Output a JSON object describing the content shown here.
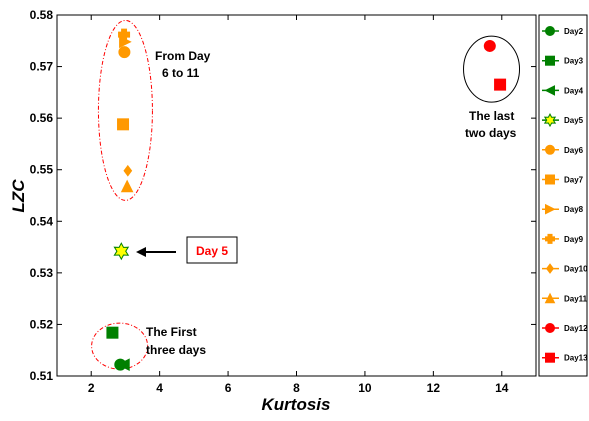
{
  "chart_data": {
    "type": "scatter",
    "title": "",
    "xlabel": "Kurtosis",
    "ylabel": "LZC",
    "xlim": [
      1,
      15
    ],
    "ylim": [
      0.51,
      0.58
    ],
    "xticks": [
      2,
      4,
      6,
      8,
      10,
      12,
      14
    ],
    "yticks": [
      0.51,
      0.52,
      0.53,
      0.54,
      0.55,
      0.56,
      0.57,
      0.58
    ],
    "grid": false,
    "legend_position": "right",
    "series": [
      {
        "name": "Day2",
        "marker": "circle",
        "color": "#008000",
        "points": [
          [
            2.85,
            0.5122
          ]
        ]
      },
      {
        "name": "Day3",
        "marker": "square",
        "color": "#008000",
        "points": [
          [
            2.62,
            0.5184
          ]
        ]
      },
      {
        "name": "Day4",
        "marker": "triangle-left",
        "color": "#008000",
        "points": [
          [
            2.95,
            0.5122
          ]
        ]
      },
      {
        "name": "Day5",
        "marker": "hexagram",
        "color": "#ffff00",
        "points": [
          [
            2.88,
            0.5342
          ]
        ]
      },
      {
        "name": "Day6",
        "marker": "circle",
        "color": "#ff9900",
        "points": [
          [
            2.97,
            0.5728
          ]
        ]
      },
      {
        "name": "Day7",
        "marker": "square",
        "color": "#ff9900",
        "points": [
          [
            2.93,
            0.5588
          ]
        ]
      },
      {
        "name": "Day8",
        "marker": "triangle-right",
        "color": "#ff9900",
        "points": [
          [
            2.99,
            0.5748
          ]
        ]
      },
      {
        "name": "Day9",
        "marker": "plus",
        "color": "#ff9900",
        "points": [
          [
            2.96,
            0.5762
          ]
        ]
      },
      {
        "name": "Day10",
        "marker": "diamond",
        "color": "#ff9900",
        "points": [
          [
            3.07,
            0.5498
          ]
        ]
      },
      {
        "name": "Day11",
        "marker": "triangle-up",
        "color": "#ff9900",
        "points": [
          [
            3.05,
            0.5468
          ]
        ]
      },
      {
        "name": "Day12",
        "marker": "circle",
        "color": "#ff0000",
        "points": [
          [
            13.65,
            0.574
          ]
        ]
      },
      {
        "name": "Day13",
        "marker": "square",
        "color": "#ff0000",
        "points": [
          [
            13.95,
            0.5665
          ]
        ]
      }
    ],
    "annotations": {
      "first_days": [
        "The First",
        "three days"
      ],
      "days_6_11": [
        "From Day",
        "6 to 11"
      ],
      "last_days": [
        "The last",
        "two days"
      ],
      "day5": "Day 5"
    },
    "colors": {
      "green": "#008000",
      "orange": "#ff9900",
      "red": "#ff0000",
      "yellow": "#ffff00",
      "ellipse_red": "#ff0000",
      "ellipse_black": "#000000"
    }
  }
}
